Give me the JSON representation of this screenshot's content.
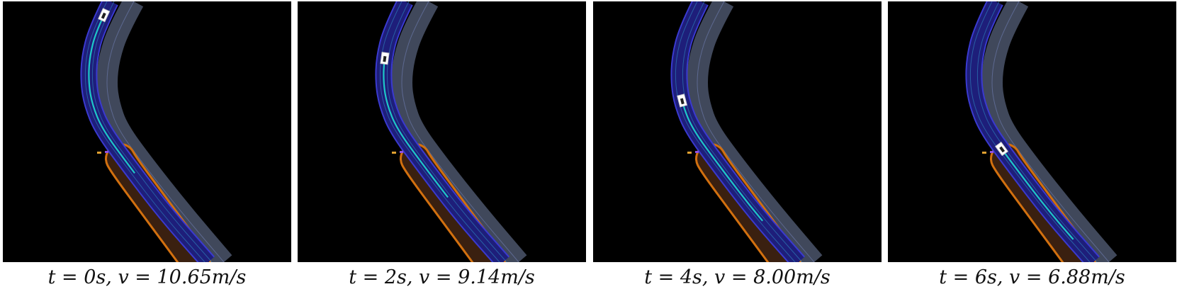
{
  "panels": [
    {
      "t": "0s",
      "v": "10.65m/s",
      "caption": "t = 0s, v = 10.65m/s",
      "vehicle_progress": 0.05,
      "trajectory_end": 0.62
    },
    {
      "t": "2s",
      "v": "9.14m/s",
      "caption": "t = 2s, v = 9.14m/s",
      "vehicle_progress": 0.2,
      "trajectory_end": 0.72
    },
    {
      "t": "4s",
      "v": "8.00m/s",
      "caption": "t = 4s, v = 8.00m/s",
      "vehicle_progress": 0.34,
      "trajectory_end": 0.82
    },
    {
      "t": "6s",
      "v": "6.88m/s",
      "caption": "t = 6s, v = 6.88m/s",
      "vehicle_progress": 0.52,
      "trajectory_end": 0.9
    }
  ],
  "colors": {
    "background": "#000000",
    "lane_fill": "#1e1e7a",
    "lane_boundary": "#3a3acf",
    "lane_center": "#2a6fb0",
    "adjacent_lane": "#56607a",
    "road_edge": "#d2700f",
    "trajectory": "#1ec8c8",
    "ego_vehicle": "#ffffff",
    "obstacle_orange": "#e0a030",
    "obstacle_purple": "#9050e0"
  }
}
